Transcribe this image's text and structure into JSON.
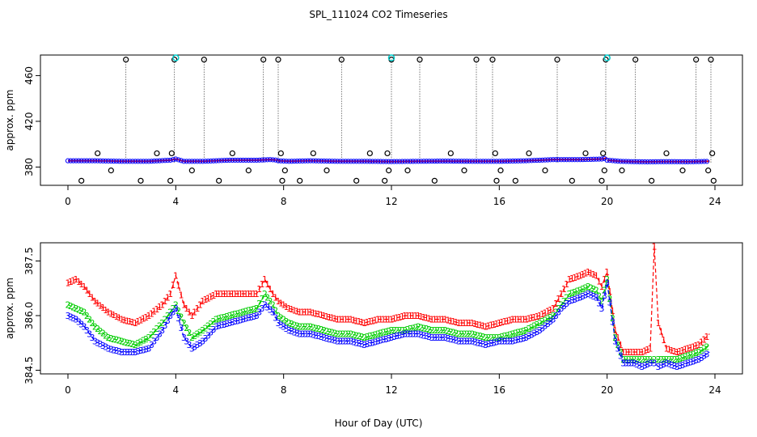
{
  "title": "SPL_111024  CO2 Timeseries",
  "xlabel": "Hour of Day (UTC)",
  "colors": {
    "s1": "#ff0000",
    "s2": "#00cc00",
    "s3": "#0000ff",
    "spike": "#000000",
    "cyan": "#00cccc",
    "line": "#000000"
  },
  "chart_data": [
    {
      "type": "scatter",
      "ylabel": "approx. ppm",
      "xlim": [
        0,
        24
      ],
      "ylim": [
        364,
        478
      ],
      "xticks": [
        "0",
        "4",
        "8",
        "12",
        "16",
        "20",
        "24"
      ],
      "yticks": [
        "380",
        "420",
        "460"
      ],
      "ytick_values": [
        380,
        420,
        460
      ],
      "baseline_segments": [
        {
          "x": [
            0,
            1,
            2,
            3,
            3.8,
            4.0,
            4.3,
            5,
            6,
            7,
            7.5,
            7.8
          ],
          "y": [
            385.5,
            385.5,
            385,
            385,
            386,
            387,
            385,
            385,
            386,
            386,
            386.5,
            386
          ]
        },
        {
          "x": [
            7.8,
            8.2,
            9,
            10,
            11,
            12,
            13,
            14,
            15,
            16,
            17,
            18,
            19,
            19.8,
            20.0
          ],
          "y": [
            385.5,
            385,
            385.5,
            385,
            385,
            384.8,
            385,
            385.2,
            385,
            385,
            385.5,
            386.5,
            386.5,
            387,
            388
          ]
        },
        {
          "x": [
            20.0,
            20.5,
            21,
            21.5,
            22,
            22.5,
            23,
            23.8
          ],
          "y": [
            386,
            385,
            384.7,
            384.5,
            384.7,
            384.7,
            384.6,
            385
          ]
        }
      ],
      "spikes": [
        {
          "x": 2.15,
          "low": 384,
          "high": 474
        },
        {
          "x": 3.95,
          "low": 384,
          "high": 474
        },
        {
          "x": 5.05,
          "low": 384,
          "high": 474
        },
        {
          "x": 7.25,
          "low": 384,
          "high": 474
        },
        {
          "x": 7.8,
          "low": 384,
          "high": 474
        },
        {
          "x": 10.15,
          "low": 384,
          "high": 474
        },
        {
          "x": 12.0,
          "low": 384,
          "high": 474
        },
        {
          "x": 13.05,
          "low": 384,
          "high": 474
        },
        {
          "x": 15.15,
          "low": 384,
          "high": 474
        },
        {
          "x": 15.75,
          "low": 384,
          "high": 474
        },
        {
          "x": 18.15,
          "low": 384,
          "high": 474
        },
        {
          "x": 19.95,
          "low": 384,
          "high": 474
        },
        {
          "x": 21.05,
          "low": 384,
          "high": 474
        },
        {
          "x": 23.3,
          "low": 384,
          "high": 474
        },
        {
          "x": 23.85,
          "low": 384,
          "high": 474
        }
      ],
      "outlier_points": [
        {
          "x": 0.5,
          "y": 368
        },
        {
          "x": 1.1,
          "y": 392
        },
        {
          "x": 1.6,
          "y": 377
        },
        {
          "x": 2.15,
          "y": 474
        },
        {
          "x": 2.7,
          "y": 368
        },
        {
          "x": 3.3,
          "y": 392
        },
        {
          "x": 3.8,
          "y": 368
        },
        {
          "x": 3.85,
          "y": 392
        },
        {
          "x": 3.95,
          "y": 474
        },
        {
          "x": 4.6,
          "y": 377
        },
        {
          "x": 5.05,
          "y": 474
        },
        {
          "x": 5.6,
          "y": 368
        },
        {
          "x": 6.1,
          "y": 392
        },
        {
          "x": 6.7,
          "y": 377
        },
        {
          "x": 7.25,
          "y": 474
        },
        {
          "x": 7.8,
          "y": 474
        },
        {
          "x": 7.9,
          "y": 392
        },
        {
          "x": 7.95,
          "y": 368
        },
        {
          "x": 8.05,
          "y": 377
        },
        {
          "x": 8.6,
          "y": 368
        },
        {
          "x": 9.1,
          "y": 392
        },
        {
          "x": 9.6,
          "y": 377
        },
        {
          "x": 10.15,
          "y": 474
        },
        {
          "x": 10.7,
          "y": 368
        },
        {
          "x": 11.2,
          "y": 392
        },
        {
          "x": 11.75,
          "y": 368
        },
        {
          "x": 11.85,
          "y": 392
        },
        {
          "x": 11.9,
          "y": 377
        },
        {
          "x": 12.0,
          "y": 474
        },
        {
          "x": 12.6,
          "y": 377
        },
        {
          "x": 13.05,
          "y": 474
        },
        {
          "x": 13.6,
          "y": 368
        },
        {
          "x": 14.2,
          "y": 392
        },
        {
          "x": 14.7,
          "y": 377
        },
        {
          "x": 15.15,
          "y": 474
        },
        {
          "x": 15.75,
          "y": 474
        },
        {
          "x": 15.85,
          "y": 392
        },
        {
          "x": 15.9,
          "y": 368
        },
        {
          "x": 16.05,
          "y": 377
        },
        {
          "x": 16.6,
          "y": 368
        },
        {
          "x": 17.1,
          "y": 392
        },
        {
          "x": 17.7,
          "y": 377
        },
        {
          "x": 18.15,
          "y": 474
        },
        {
          "x": 18.7,
          "y": 368
        },
        {
          "x": 19.2,
          "y": 392
        },
        {
          "x": 19.8,
          "y": 368
        },
        {
          "x": 19.85,
          "y": 392
        },
        {
          "x": 19.9,
          "y": 377
        },
        {
          "x": 19.95,
          "y": 474
        },
        {
          "x": 20.55,
          "y": 377
        },
        {
          "x": 21.05,
          "y": 474
        },
        {
          "x": 21.65,
          "y": 368
        },
        {
          "x": 22.2,
          "y": 392
        },
        {
          "x": 22.8,
          "y": 377
        },
        {
          "x": 23.3,
          "y": 474
        },
        {
          "x": 23.85,
          "y": 474
        },
        {
          "x": 23.9,
          "y": 392
        },
        {
          "x": 23.95,
          "y": 368
        },
        {
          "x": 23.75,
          "y": 377
        }
      ],
      "cyan_points": [
        {
          "x": 4.0,
          "y": 475.5
        },
        {
          "x": 12.0,
          "y": 475.5
        },
        {
          "x": 20.0,
          "y": 475.5
        }
      ]
    },
    {
      "type": "line",
      "ylabel": "approx. ppm",
      "xlim": [
        0,
        24
      ],
      "ylim": [
        384.4,
        388.0
      ],
      "xticks": [
        "0",
        "4",
        "8",
        "12",
        "16",
        "20",
        "24"
      ],
      "yticks": [
        "384.5",
        "386.0",
        "387.5"
      ],
      "ytick_values": [
        384.5,
        386.0,
        387.5
      ],
      "series": [
        {
          "name": "1",
          "x": [
            0.0,
            0.3,
            0.6,
            1.0,
            1.5,
            2.0,
            2.5,
            3.0,
            3.5,
            3.8,
            4.0,
            4.3,
            4.6,
            5.0,
            5.5,
            6.0,
            6.5,
            7.0,
            7.3,
            7.6,
            7.8,
            8.2,
            8.6,
            9.0,
            9.5,
            10.0,
            10.5,
            11.0,
            11.5,
            12.0,
            12.5,
            13.0,
            13.5,
            14.0,
            14.5,
            15.0,
            15.5,
            16.0,
            16.5,
            17.0,
            17.5,
            18.0,
            18.3,
            18.6,
            19.0,
            19.3,
            19.6,
            19.8,
            20.0,
            20.3,
            20.6,
            21.0,
            21.3,
            21.6,
            21.75,
            21.9,
            22.2,
            22.6,
            23.0,
            23.4,
            23.8
          ],
          "y": [
            386.9,
            387.0,
            386.8,
            386.4,
            386.1,
            385.9,
            385.8,
            386.0,
            386.3,
            386.6,
            387.1,
            386.3,
            386.0,
            386.4,
            386.6,
            386.6,
            386.6,
            386.6,
            387.0,
            386.6,
            386.4,
            386.2,
            386.1,
            386.1,
            386.0,
            385.9,
            385.9,
            385.8,
            385.9,
            385.9,
            386.0,
            386.0,
            385.9,
            385.9,
            385.8,
            385.8,
            385.7,
            385.8,
            385.9,
            385.9,
            386.0,
            386.2,
            386.6,
            387.0,
            387.1,
            387.2,
            387.1,
            386.8,
            387.2,
            385.6,
            385.0,
            385.0,
            385.0,
            385.1,
            387.9,
            385.8,
            385.1,
            385.0,
            385.1,
            385.2,
            385.5
          ]
        },
        {
          "name": "2",
          "x": [
            0.0,
            0.3,
            0.6,
            1.0,
            1.5,
            2.0,
            2.5,
            3.0,
            3.5,
            3.8,
            4.0,
            4.3,
            4.6,
            5.0,
            5.5,
            6.0,
            6.5,
            7.0,
            7.3,
            7.6,
            7.8,
            8.2,
            8.6,
            9.0,
            9.5,
            10.0,
            10.5,
            11.0,
            11.5,
            12.0,
            12.5,
            13.0,
            13.5,
            14.0,
            14.5,
            15.0,
            15.5,
            16.0,
            16.5,
            17.0,
            17.5,
            18.0,
            18.3,
            18.6,
            19.0,
            19.3,
            19.6,
            19.8,
            20.0,
            20.3,
            20.6,
            21.0,
            21.3,
            21.6,
            21.75,
            21.9,
            22.2,
            22.6,
            23.0,
            23.4,
            23.8
          ],
          "y": [
            386.3,
            386.2,
            386.1,
            385.7,
            385.4,
            385.3,
            385.2,
            385.4,
            385.8,
            386.1,
            386.3,
            385.8,
            385.4,
            385.6,
            385.9,
            386.0,
            386.1,
            386.2,
            386.6,
            386.3,
            386.0,
            385.8,
            385.7,
            385.7,
            385.6,
            385.5,
            385.5,
            385.4,
            385.5,
            385.6,
            385.6,
            385.7,
            385.6,
            385.6,
            385.5,
            385.5,
            385.4,
            385.4,
            385.5,
            385.6,
            385.8,
            386.0,
            386.3,
            386.6,
            386.7,
            386.8,
            386.7,
            386.4,
            387.0,
            385.4,
            384.8,
            384.8,
            384.8,
            384.8,
            384.8,
            384.8,
            384.8,
            384.8,
            384.9,
            385.0,
            385.2
          ]
        },
        {
          "name": "3",
          "x": [
            0.0,
            0.3,
            0.6,
            1.0,
            1.5,
            2.0,
            2.5,
            3.0,
            3.5,
            3.8,
            4.0,
            4.3,
            4.6,
            5.0,
            5.5,
            6.0,
            6.5,
            7.0,
            7.3,
            7.6,
            7.8,
            8.2,
            8.6,
            9.0,
            9.5,
            10.0,
            10.5,
            11.0,
            11.5,
            12.0,
            12.5,
            13.0,
            13.5,
            14.0,
            14.5,
            15.0,
            15.5,
            16.0,
            16.5,
            17.0,
            17.5,
            18.0,
            18.3,
            18.6,
            19.0,
            19.3,
            19.6,
            19.8,
            20.0,
            20.3,
            20.6,
            21.0,
            21.3,
            21.6,
            21.75,
            21.9,
            22.2,
            22.6,
            23.0,
            23.4,
            23.8
          ],
          "y": [
            386.0,
            385.9,
            385.7,
            385.3,
            385.1,
            385.0,
            385.0,
            385.1,
            385.6,
            386.0,
            386.2,
            385.4,
            385.1,
            385.3,
            385.7,
            385.8,
            385.9,
            386.0,
            386.3,
            386.1,
            385.8,
            385.6,
            385.5,
            385.5,
            385.4,
            385.3,
            385.3,
            385.2,
            385.3,
            385.4,
            385.5,
            385.5,
            385.4,
            385.4,
            385.3,
            385.3,
            385.2,
            385.3,
            385.3,
            385.4,
            385.6,
            385.9,
            386.2,
            386.4,
            386.5,
            386.6,
            386.5,
            386.2,
            386.9,
            385.3,
            384.7,
            384.7,
            384.6,
            384.7,
            384.7,
            384.6,
            384.7,
            384.6,
            384.7,
            384.8,
            385.0
          ]
        }
      ]
    }
  ]
}
